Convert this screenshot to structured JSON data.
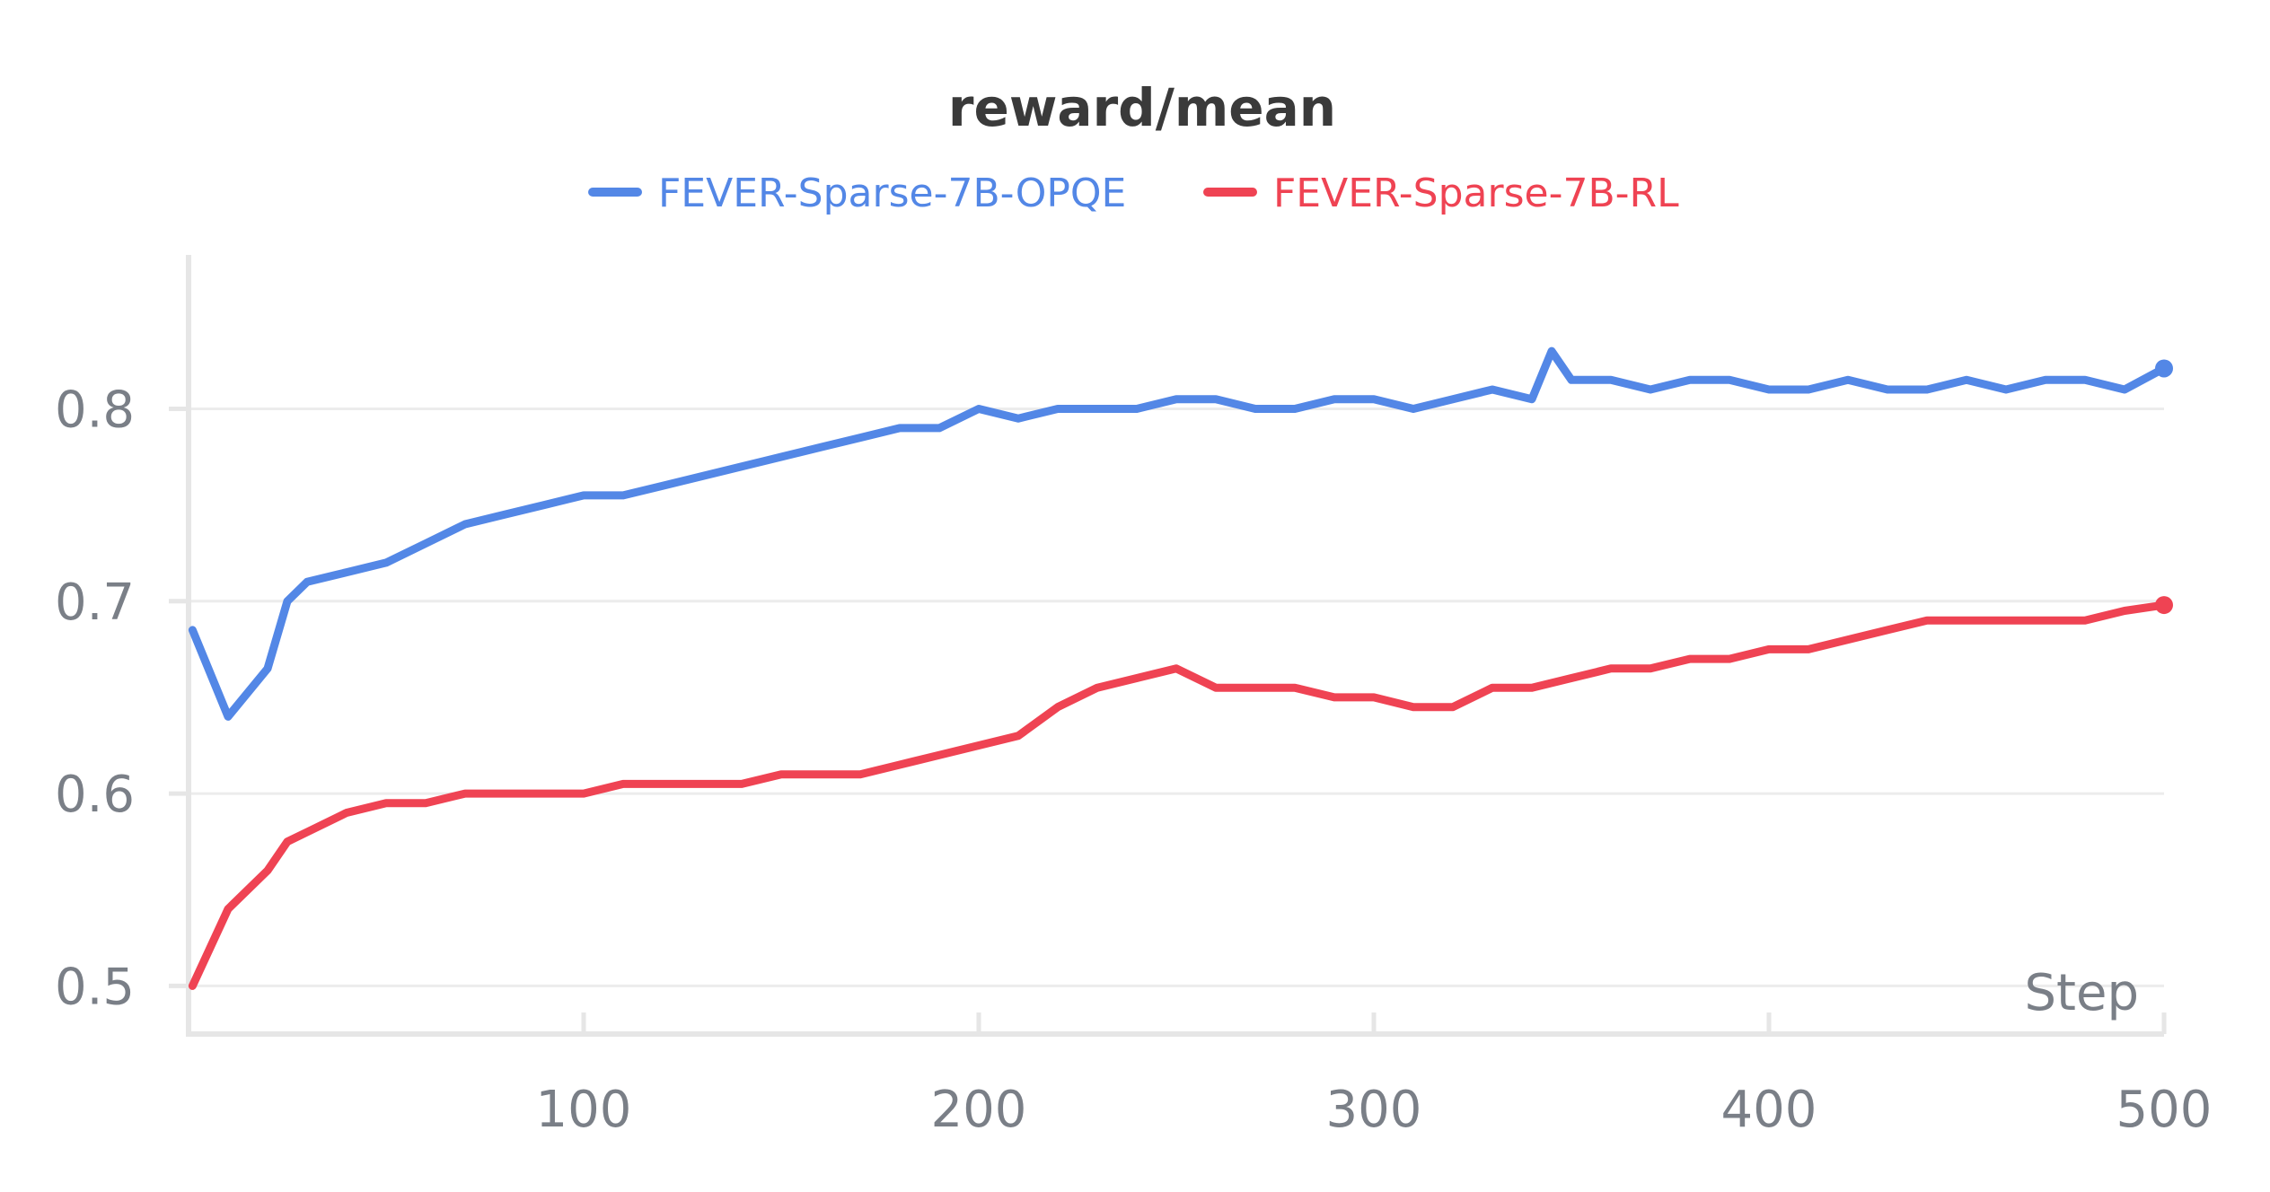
{
  "chart_data": {
    "type": "line",
    "title": "reward/mean",
    "xlabel": "Step",
    "ylabel": "",
    "xlim": [
      0,
      500
    ],
    "ylim": [
      0.475,
      0.88
    ],
    "xticks": [
      100,
      200,
      300,
      400,
      500
    ],
    "yticks": [
      0.5,
      0.6,
      0.7,
      0.8
    ],
    "ytick_labels": [
      "0.5",
      "0.6",
      "0.7",
      "0.8"
    ],
    "xtick_labels": [
      "100",
      "200",
      "300",
      "400",
      "500"
    ],
    "grid": true,
    "legend_position": "top-center",
    "series": [
      {
        "name": "FEVER-Sparse-7B-OPQE",
        "color": "#5387e6",
        "x": [
          1,
          10,
          20,
          25,
          30,
          40,
          50,
          60,
          70,
          80,
          90,
          100,
          110,
          120,
          130,
          140,
          150,
          160,
          170,
          180,
          190,
          200,
          210,
          220,
          230,
          240,
          250,
          260,
          270,
          280,
          290,
          300,
          310,
          320,
          330,
          340,
          345,
          350,
          360,
          370,
          380,
          390,
          400,
          410,
          420,
          430,
          440,
          450,
          460,
          470,
          480,
          490,
          500
        ],
        "values": [
          0.685,
          0.64,
          0.665,
          0.7,
          0.71,
          0.715,
          0.72,
          0.73,
          0.74,
          0.745,
          0.75,
          0.755,
          0.755,
          0.76,
          0.765,
          0.77,
          0.775,
          0.78,
          0.785,
          0.79,
          0.79,
          0.8,
          0.795,
          0.8,
          0.8,
          0.8,
          0.805,
          0.805,
          0.8,
          0.8,
          0.805,
          0.805,
          0.8,
          0.805,
          0.81,
          0.805,
          0.83,
          0.815,
          0.815,
          0.81,
          0.815,
          0.815,
          0.81,
          0.81,
          0.815,
          0.81,
          0.81,
          0.815,
          0.81,
          0.815,
          0.815,
          0.81,
          0.821
        ]
      },
      {
        "name": "FEVER-Sparse-7B-RL",
        "color": "#ef4353",
        "x": [
          1,
          10,
          20,
          25,
          30,
          40,
          50,
          60,
          70,
          80,
          90,
          100,
          110,
          120,
          130,
          140,
          150,
          160,
          170,
          180,
          190,
          200,
          210,
          220,
          230,
          240,
          250,
          260,
          270,
          280,
          290,
          300,
          310,
          320,
          330,
          340,
          350,
          360,
          370,
          380,
          390,
          400,
          410,
          420,
          430,
          440,
          450,
          460,
          470,
          480,
          490,
          500
        ],
        "values": [
          0.5,
          0.54,
          0.56,
          0.575,
          0.58,
          0.59,
          0.595,
          0.595,
          0.6,
          0.6,
          0.6,
          0.6,
          0.605,
          0.605,
          0.605,
          0.605,
          0.61,
          0.61,
          0.61,
          0.615,
          0.62,
          0.625,
          0.63,
          0.645,
          0.655,
          0.66,
          0.665,
          0.655,
          0.655,
          0.655,
          0.65,
          0.65,
          0.645,
          0.645,
          0.655,
          0.655,
          0.66,
          0.665,
          0.665,
          0.67,
          0.67,
          0.675,
          0.675,
          0.68,
          0.685,
          0.69,
          0.69,
          0.69,
          0.69,
          0.69,
          0.695,
          0.698
        ]
      }
    ]
  }
}
